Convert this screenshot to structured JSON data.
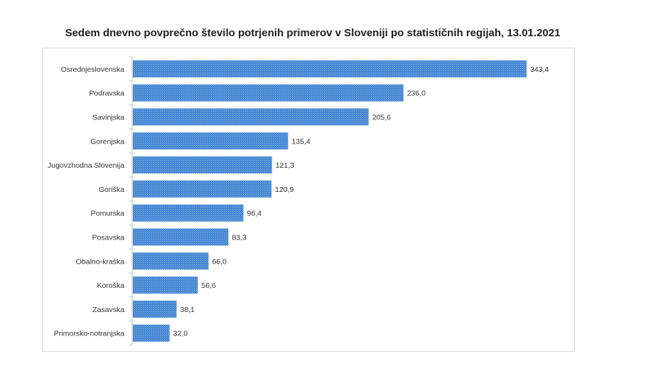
{
  "colors": {
    "bar": "#3a7fd0",
    "bar_dot": "#9cc4ef",
    "text": "#333333",
    "axis": "#bfbfbf",
    "frame": "#d9d9d9"
  },
  "chart_data": {
    "type": "bar",
    "orientation": "horizontal",
    "title": "Sedem dnevno povprečno število potrjenih primerov v Sloveniji po statističnih regijah, 13.01.2021",
    "xlabel": "",
    "ylabel": "",
    "grid": false,
    "legend": "none",
    "xlim": [
      0,
      380
    ],
    "categories": [
      "Osrednjeslovenska",
      "Podravska",
      "Savinjska",
      "Gorenjska",
      "Jugovzhodna Slovenija",
      "Goriška",
      "Pomurska",
      "Posavska",
      "Obalno-kraška",
      "Koroška",
      "Zasavska",
      "Primorsko-notranjska"
    ],
    "values": [
      343.4,
      236.0,
      205.6,
      135.4,
      121.3,
      120.9,
      96.4,
      83.3,
      66.0,
      56.6,
      38.1,
      32.0
    ],
    "value_labels": [
      "343,4",
      "236,0",
      "205,6",
      "135,4",
      "121,3",
      "120,9",
      "96,4",
      "83,3",
      "66,0",
      "56,6",
      "38,1",
      "32,0"
    ]
  }
}
